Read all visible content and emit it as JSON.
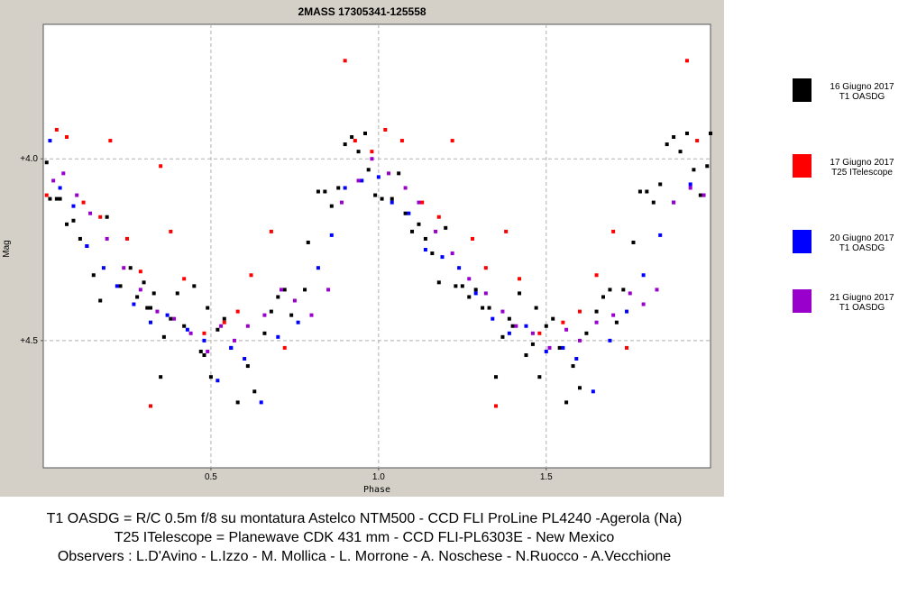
{
  "chart_data": {
    "type": "scatter",
    "title": "2MASS 17305341-125558",
    "xlabel": "Phase",
    "ylabel": "Mag",
    "xlim": [
      0.0,
      1.99
    ],
    "ylim": [
      3.63,
      4.85
    ],
    "y_inverted": true,
    "x_ticks": [
      0.5,
      1.0,
      1.5
    ],
    "x_tick_labels": [
      "0.5",
      "1.0",
      "1.5"
    ],
    "y_ticks": [
      4.0,
      4.5
    ],
    "y_tick_labels": [
      "+4.0",
      "+4.5"
    ],
    "grid": "dashed",
    "legend_position": "right",
    "series": [
      {
        "name": "16 Giugno 2017 T1 OASDG",
        "color": "#000000",
        "points": [
          [
            0.01,
            4.01
          ],
          [
            0.02,
            4.11
          ],
          [
            0.04,
            4.11
          ],
          [
            0.05,
            4.11
          ],
          [
            0.07,
            4.18
          ],
          [
            0.09,
            4.17
          ],
          [
            0.11,
            4.22
          ],
          [
            0.13,
            4.24
          ],
          [
            0.15,
            4.32
          ],
          [
            0.17,
            4.39
          ],
          [
            0.19,
            4.16
          ],
          [
            0.23,
            4.35
          ],
          [
            0.26,
            4.3
          ],
          [
            0.28,
            4.38
          ],
          [
            0.3,
            4.34
          ],
          [
            0.31,
            4.41
          ],
          [
            0.32,
            4.41
          ],
          [
            0.33,
            4.37
          ],
          [
            0.35,
            4.6
          ],
          [
            0.36,
            4.49
          ],
          [
            0.38,
            4.44
          ],
          [
            0.4,
            4.37
          ],
          [
            0.42,
            4.46
          ],
          [
            0.45,
            4.35
          ],
          [
            0.47,
            4.53
          ],
          [
            0.48,
            4.54
          ],
          [
            0.49,
            4.41
          ],
          [
            0.5,
            4.6
          ],
          [
            0.52,
            4.47
          ],
          [
            0.54,
            4.44
          ],
          [
            0.56,
            4.52
          ],
          [
            0.58,
            4.67
          ],
          [
            0.61,
            4.57
          ],
          [
            0.63,
            4.64
          ],
          [
            0.66,
            4.48
          ],
          [
            0.68,
            4.42
          ],
          [
            0.7,
            4.38
          ],
          [
            0.72,
            4.36
          ],
          [
            0.74,
            4.43
          ],
          [
            0.78,
            4.36
          ],
          [
            0.79,
            4.23
          ],
          [
            0.82,
            4.09
          ],
          [
            0.84,
            4.09
          ],
          [
            0.86,
            4.13
          ],
          [
            0.88,
            4.08
          ],
          [
            0.9,
            3.96
          ],
          [
            0.92,
            3.94
          ],
          [
            0.94,
            3.98
          ],
          [
            0.96,
            3.93
          ],
          [
            0.97,
            4.03
          ],
          [
            0.99,
            4.1
          ],
          [
            1.01,
            4.11
          ],
          [
            1.04,
            4.11
          ],
          [
            1.06,
            4.04
          ],
          [
            1.08,
            4.15
          ],
          [
            1.1,
            4.2
          ],
          [
            1.12,
            4.18
          ],
          [
            1.14,
            4.22
          ],
          [
            1.16,
            4.26
          ],
          [
            1.18,
            4.34
          ],
          [
            1.2,
            4.19
          ],
          [
            1.23,
            4.35
          ],
          [
            1.25,
            4.35
          ],
          [
            1.27,
            4.38
          ],
          [
            1.29,
            4.36
          ],
          [
            1.31,
            4.41
          ],
          [
            1.33,
            4.41
          ],
          [
            1.35,
            4.6
          ],
          [
            1.37,
            4.49
          ],
          [
            1.39,
            4.44
          ],
          [
            1.4,
            4.46
          ],
          [
            1.42,
            4.37
          ],
          [
            1.44,
            4.54
          ],
          [
            1.46,
            4.51
          ],
          [
            1.47,
            4.41
          ],
          [
            1.48,
            4.6
          ],
          [
            1.5,
            4.46
          ],
          [
            1.52,
            4.44
          ],
          [
            1.54,
            4.52
          ],
          [
            1.56,
            4.67
          ],
          [
            1.58,
            4.57
          ],
          [
            1.6,
            4.63
          ],
          [
            1.62,
            4.48
          ],
          [
            1.65,
            4.42
          ],
          [
            1.67,
            4.38
          ],
          [
            1.69,
            4.36
          ],
          [
            1.71,
            4.45
          ],
          [
            1.73,
            4.36
          ],
          [
            1.76,
            4.23
          ],
          [
            1.78,
            4.09
          ],
          [
            1.8,
            4.09
          ],
          [
            1.82,
            4.12
          ],
          [
            1.84,
            4.07
          ],
          [
            1.86,
            3.96
          ],
          [
            1.88,
            3.94
          ],
          [
            1.9,
            3.98
          ],
          [
            1.92,
            3.93
          ],
          [
            1.94,
            4.03
          ],
          [
            1.96,
            4.1
          ],
          [
            1.98,
            4.02
          ],
          [
            1.99,
            3.93
          ]
        ]
      },
      {
        "name": "17 Giugno 2017 T25 ITelescope",
        "color": "#ff0000",
        "points": [
          [
            0.01,
            4.1
          ],
          [
            0.04,
            3.92
          ],
          [
            0.07,
            3.94
          ],
          [
            0.12,
            4.12
          ],
          [
            0.17,
            4.16
          ],
          [
            0.2,
            3.95
          ],
          [
            0.25,
            4.22
          ],
          [
            0.29,
            4.31
          ],
          [
            0.32,
            4.68
          ],
          [
            0.35,
            4.02
          ],
          [
            0.38,
            4.2
          ],
          [
            0.42,
            4.33
          ],
          [
            0.48,
            4.48
          ],
          [
            0.54,
            4.45
          ],
          [
            0.58,
            4.42
          ],
          [
            0.62,
            4.32
          ],
          [
            0.68,
            4.2
          ],
          [
            0.72,
            4.52
          ],
          [
            0.9,
            3.73
          ],
          [
            0.93,
            3.95
          ],
          [
            0.98,
            3.98
          ],
          [
            1.02,
            3.92
          ],
          [
            1.07,
            3.95
          ],
          [
            1.13,
            4.12
          ],
          [
            1.18,
            4.16
          ],
          [
            1.22,
            3.95
          ],
          [
            1.28,
            4.22
          ],
          [
            1.32,
            4.3
          ],
          [
            1.35,
            4.68
          ],
          [
            1.38,
            4.2
          ],
          [
            1.42,
            4.33
          ],
          [
            1.48,
            4.48
          ],
          [
            1.55,
            4.45
          ],
          [
            1.6,
            4.42
          ],
          [
            1.65,
            4.32
          ],
          [
            1.7,
            4.2
          ],
          [
            1.74,
            4.52
          ],
          [
            1.92,
            3.73
          ],
          [
            1.95,
            3.95
          ]
        ]
      },
      {
        "name": "20 Giugno 2017 T1 OASDG",
        "color": "#0000ff",
        "points": [
          [
            0.02,
            3.95
          ],
          [
            0.05,
            4.08
          ],
          [
            0.09,
            4.13
          ],
          [
            0.13,
            4.24
          ],
          [
            0.18,
            4.3
          ],
          [
            0.22,
            4.35
          ],
          [
            0.27,
            4.4
          ],
          [
            0.32,
            4.45
          ],
          [
            0.37,
            4.43
          ],
          [
            0.43,
            4.47
          ],
          [
            0.48,
            4.5
          ],
          [
            0.52,
            4.61
          ],
          [
            0.56,
            4.52
          ],
          [
            0.6,
            4.55
          ],
          [
            0.65,
            4.67
          ],
          [
            0.7,
            4.49
          ],
          [
            0.76,
            4.45
          ],
          [
            0.82,
            4.3
          ],
          [
            0.86,
            4.21
          ],
          [
            0.9,
            4.08
          ],
          [
            0.95,
            4.06
          ],
          [
            1.0,
            4.05
          ],
          [
            1.04,
            4.12
          ],
          [
            1.09,
            4.15
          ],
          [
            1.14,
            4.25
          ],
          [
            1.19,
            4.27
          ],
          [
            1.24,
            4.3
          ],
          [
            1.29,
            4.37
          ],
          [
            1.34,
            4.44
          ],
          [
            1.39,
            4.48
          ],
          [
            1.44,
            4.46
          ],
          [
            1.5,
            4.53
          ],
          [
            1.55,
            4.52
          ],
          [
            1.59,
            4.55
          ],
          [
            1.64,
            4.64
          ],
          [
            1.69,
            4.5
          ],
          [
            1.74,
            4.42
          ],
          [
            1.79,
            4.32
          ],
          [
            1.84,
            4.21
          ],
          [
            1.88,
            4.12
          ],
          [
            1.93,
            4.07
          ]
        ]
      },
      {
        "name": "21 Giugno 2017 T1 OASDG",
        "color": "#9900cc",
        "points": [
          [
            0.03,
            4.06
          ],
          [
            0.06,
            4.04
          ],
          [
            0.1,
            4.1
          ],
          [
            0.14,
            4.15
          ],
          [
            0.19,
            4.22
          ],
          [
            0.24,
            4.3
          ],
          [
            0.29,
            4.36
          ],
          [
            0.34,
            4.42
          ],
          [
            0.39,
            4.44
          ],
          [
            0.44,
            4.48
          ],
          [
            0.49,
            4.53
          ],
          [
            0.53,
            4.46
          ],
          [
            0.57,
            4.5
          ],
          [
            0.61,
            4.46
          ],
          [
            0.66,
            4.43
          ],
          [
            0.71,
            4.36
          ],
          [
            0.75,
            4.39
          ],
          [
            0.8,
            4.43
          ],
          [
            0.85,
            4.36
          ],
          [
            0.89,
            4.12
          ],
          [
            0.94,
            4.06
          ],
          [
            0.98,
            4.0
          ],
          [
            1.03,
            4.04
          ],
          [
            1.08,
            4.08
          ],
          [
            1.12,
            4.12
          ],
          [
            1.17,
            4.2
          ],
          [
            1.22,
            4.26
          ],
          [
            1.27,
            4.33
          ],
          [
            1.32,
            4.37
          ],
          [
            1.37,
            4.42
          ],
          [
            1.41,
            4.46
          ],
          [
            1.46,
            4.48
          ],
          [
            1.51,
            4.52
          ],
          [
            1.56,
            4.47
          ],
          [
            1.6,
            4.5
          ],
          [
            1.65,
            4.45
          ],
          [
            1.7,
            4.43
          ],
          [
            1.75,
            4.37
          ],
          [
            1.79,
            4.4
          ],
          [
            1.83,
            4.36
          ],
          [
            1.88,
            4.12
          ],
          [
            1.93,
            4.08
          ],
          [
            1.97,
            4.1
          ]
        ]
      }
    ]
  },
  "legend": [
    {
      "line1": "16 Giugno 2017",
      "line2": "T1 OASDG",
      "color": "#000000"
    },
    {
      "line1": "17 Giugno 2017",
      "line2": "T25 ITelescope",
      "color": "#ff0000"
    },
    {
      "line1": "20 Giugno 2017",
      "line2": "T1 OASDG",
      "color": "#0000ff"
    },
    {
      "line1": "21 Giugno 2017",
      "line2": "T1 OASDG",
      "color": "#9900cc"
    }
  ],
  "notes": {
    "line1": "T1 OASDG =  R/C 0.5m f/8 su montatura Astelco NTM500 - CCD FLI ProLine PL4240 -Agerola (Na)",
    "line2": "T25 ITelescope = Planewave CDK 431 mm - CCD  FLI-PL6303E - New Mexico",
    "line3": "Observers : L.D'Avino - L.Izzo - M. Mollica - L. Morrone - A. Noschese - N.Ruocco - A.Vecchione"
  }
}
